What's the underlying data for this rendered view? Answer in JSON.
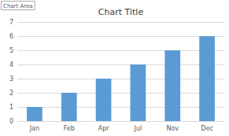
{
  "chart_data": {
    "type": "bar",
    "title": "Chart Title",
    "categories": [
      "Jan",
      "Feb",
      "Apr",
      "Jul",
      "Nov",
      "Dec"
    ],
    "values": [
      1,
      2,
      3,
      4,
      5,
      6
    ],
    "color": "#5B9BD5",
    "ylim": [
      0,
      7
    ],
    "yticks": [
      0,
      1,
      2,
      3,
      4,
      5,
      6,
      7
    ],
    "grid": true,
    "annotations": [
      "Chart Area"
    ]
  }
}
